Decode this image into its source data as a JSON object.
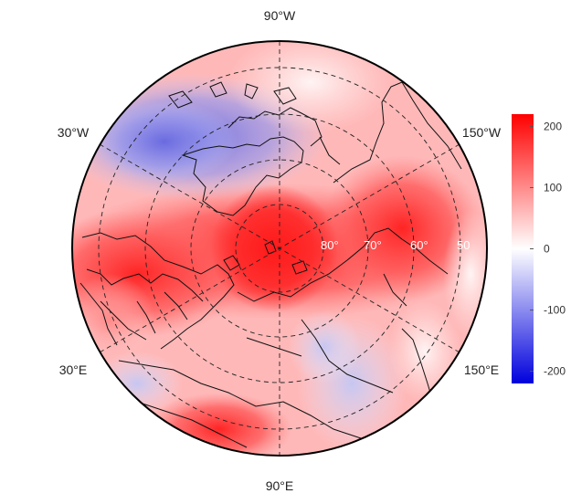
{
  "map": {
    "projection": "north-polar-stereographic",
    "lon_labels": {
      "top": "90°W",
      "upper_left": "30°W",
      "upper_right": "150°W",
      "lower_left": "30°E",
      "lower_right": "150°E",
      "bottom": "90°E"
    },
    "lat_labels": [
      "80°",
      "70°",
      "60°",
      "50"
    ],
    "colorbar": {
      "ticks": [
        "200",
        "100",
        "0",
        "-100",
        "-200"
      ],
      "min": -220,
      "max": 220,
      "colors": {
        "low": "#0000dd",
        "mid": "#ffffff",
        "high": "#ff0000"
      }
    }
  }
}
